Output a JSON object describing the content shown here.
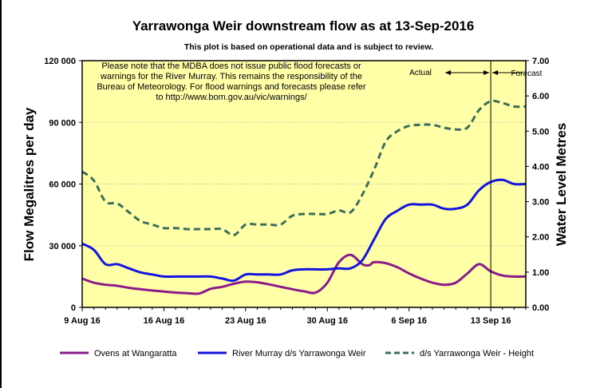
{
  "chart_data": {
    "type": "line",
    "title": "Yarrawonga Weir downstream  flow as at 13-Sep-2016",
    "subtitle": "This plot is based on operational data and is subject to review.",
    "ylabel": "Flow Megalitres per day",
    "y2label": "Water Level Metres",
    "ylim": [
      0,
      120000
    ],
    "y2lim": [
      0,
      7
    ],
    "xlim": [
      0,
      38
    ],
    "y_ticks": [
      0,
      30000,
      60000,
      90000,
      120000
    ],
    "y_tick_labels": [
      "0",
      "30 000",
      "60 000",
      "90 000",
      "120 000"
    ],
    "y2_ticks": [
      0,
      1,
      2,
      3,
      4,
      5,
      6,
      7
    ],
    "y2_tick_labels": [
      "0.00",
      "1.00",
      "2.00",
      "3.00",
      "4.00",
      "5.00",
      "6.00",
      "7.00"
    ],
    "x_ticks": [
      0,
      7,
      14,
      21,
      28,
      35
    ],
    "x_tick_labels": [
      "9 Aug 16",
      "16 Aug 16",
      "23 Aug 16",
      "30 Aug 16",
      "6 Sep 16",
      "13 Sep 16"
    ],
    "forecast_divider_x": 35,
    "actual_label": "Actual",
    "forecast_label": "Forecast",
    "notice": [
      "Please note that the MDBA does not issue public flood forecasts or",
      "warnings for the River Murray.  This remains the responsibility of the",
      "Bureau of Meteorology.  For flood warnings and forecasts please refer",
      "to http://www.bom.gov.au/vic/warnings/"
    ],
    "series": [
      {
        "name": "Ovens at Wangaratta",
        "axis": "left",
        "color": "#8b1a8b",
        "style": "solid",
        "x": [
          0,
          1,
          2,
          3,
          4,
          5,
          6,
          7,
          8,
          9,
          10,
          11,
          12,
          13,
          14,
          15,
          16,
          17,
          18,
          19,
          20,
          21,
          22,
          23,
          24,
          24.6,
          25,
          26,
          27,
          28,
          29,
          30,
          31,
          32,
          33,
          34,
          35,
          36,
          37,
          38
        ],
        "y": [
          14000,
          12000,
          11000,
          10500,
          9500,
          8800,
          8200,
          7700,
          7200,
          6900,
          6700,
          9000,
          10000,
          11500,
          12500,
          12200,
          11200,
          10000,
          8800,
          7800,
          7200,
          12000,
          22000,
          25500,
          21000,
          20500,
          22000,
          21500,
          19500,
          16500,
          14000,
          12000,
          11000,
          12000,
          16500,
          21000,
          17500,
          15500,
          15000,
          15000
        ]
      },
      {
        "name": "River Murray d/s Yarrawonga Weir",
        "axis": "left",
        "color": "#1414e0",
        "style": "solid",
        "x": [
          0,
          1,
          2,
          3,
          4,
          5,
          6,
          7,
          8,
          9,
          10,
          11,
          12,
          13,
          14,
          15,
          16,
          17,
          18,
          19,
          20,
          21,
          22,
          23,
          24,
          25,
          26,
          27,
          28,
          29,
          30,
          31,
          32,
          33,
          34,
          35,
          36,
          37,
          38
        ],
        "y": [
          31000,
          28000,
          21000,
          21000,
          19000,
          17000,
          16000,
          15000,
          15000,
          15000,
          15000,
          15000,
          14000,
          13000,
          16000,
          16000,
          16000,
          16000,
          18000,
          18500,
          18500,
          18500,
          19000,
          19000,
          23000,
          33000,
          43000,
          47000,
          50000,
          50000,
          50000,
          48000,
          48000,
          50000,
          57000,
          61000,
          62000,
          60000,
          60000
        ]
      },
      {
        "name": "d/s Yarrawonga Weir - Height",
        "axis": "right",
        "color": "#3c6e5a",
        "style": "dashed",
        "x": [
          0,
          1,
          2,
          3,
          4,
          5,
          6,
          7,
          8,
          9,
          10,
          11,
          12,
          13,
          14,
          15,
          16,
          17,
          18,
          19,
          20,
          21,
          22,
          23,
          24,
          25,
          26,
          27,
          28,
          29,
          30,
          31,
          32,
          33,
          34,
          35,
          36,
          37,
          38
        ],
        "y": [
          3.85,
          3.6,
          3.0,
          2.95,
          2.7,
          2.45,
          2.35,
          2.25,
          2.25,
          2.22,
          2.22,
          2.22,
          2.22,
          2.05,
          2.35,
          2.35,
          2.35,
          2.35,
          2.6,
          2.65,
          2.65,
          2.65,
          2.75,
          2.7,
          3.2,
          3.9,
          4.7,
          5.0,
          5.15,
          5.18,
          5.18,
          5.1,
          5.05,
          5.1,
          5.6,
          5.85,
          5.8,
          5.7,
          5.7
        ]
      }
    ],
    "legend": [
      "Ovens at Wangaratta",
      "River Murray d/s Yarrawonga Weir",
      "d/s Yarrawonga Weir - Height"
    ]
  }
}
